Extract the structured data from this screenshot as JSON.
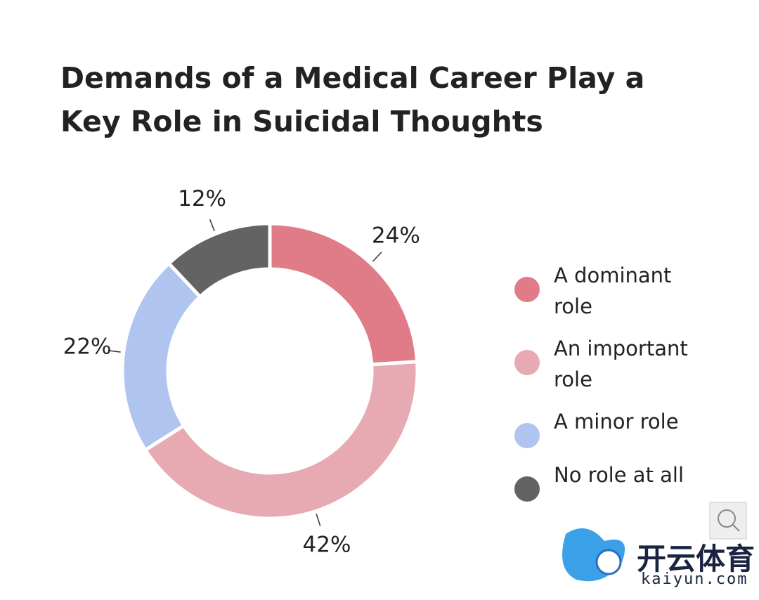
{
  "chart_data": {
    "type": "donut",
    "title": "Demands of a Medical Career Play a Key Role in Suicidal Thoughts",
    "categories": [
      "A dominant role",
      "An important role",
      "A minor role",
      "No role at all"
    ],
    "series": [
      {
        "values": [
          24,
          42,
          22,
          12
        ],
        "value_labels": [
          "24%",
          "42%",
          "22%",
          "12%"
        ],
        "colors": [
          "#e07b88",
          "#e8aab2",
          "#afc4ee",
          "#636363"
        ]
      }
    ],
    "legend": "right"
  },
  "watermark": {
    "brand": "开云体育",
    "site": "kaiyun.com"
  }
}
